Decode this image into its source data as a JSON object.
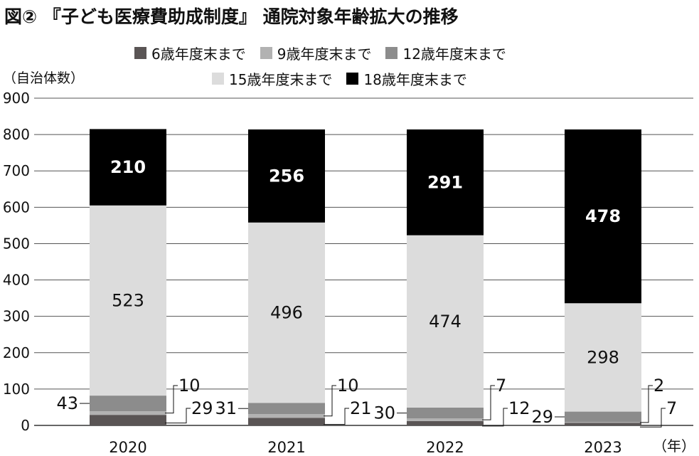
{
  "header": {
    "title": "図② 『子ども医療費助成制度』 通院対象年齢拡大の推移"
  },
  "chart_data": {
    "type": "bar",
    "stacked": true,
    "title": "図② 『子ども医療費助成制度』 通院対象年齢拡大の推移",
    "ylabel": "（自治体数）",
    "xunit": "（年）",
    "ylim": [
      0,
      900
    ],
    "yticks": [
      0,
      100,
      200,
      300,
      400,
      500,
      600,
      700,
      800,
      900
    ],
    "grid": true,
    "legend_position": "top",
    "categories": [
      "2020",
      "2021",
      "2022",
      "2023"
    ],
    "series": [
      {
        "name": "6歳年度末まで",
        "color": "#5a5555",
        "values": [
          29,
          21,
          12,
          7
        ]
      },
      {
        "name": "9歳年度末まで",
        "color": "#b2b2b2",
        "values": [
          10,
          10,
          7,
          2
        ]
      },
      {
        "name": "12歳年度末まで",
        "color": "#8c8c8c",
        "values": [
          43,
          31,
          30,
          29
        ]
      },
      {
        "name": "15歳年度末まで",
        "color": "#dcdcdc",
        "values": [
          523,
          496,
          474,
          298
        ]
      },
      {
        "name": "18歳年度末まで",
        "color": "#000000",
        "values": [
          210,
          256,
          291,
          478
        ]
      }
    ]
  }
}
